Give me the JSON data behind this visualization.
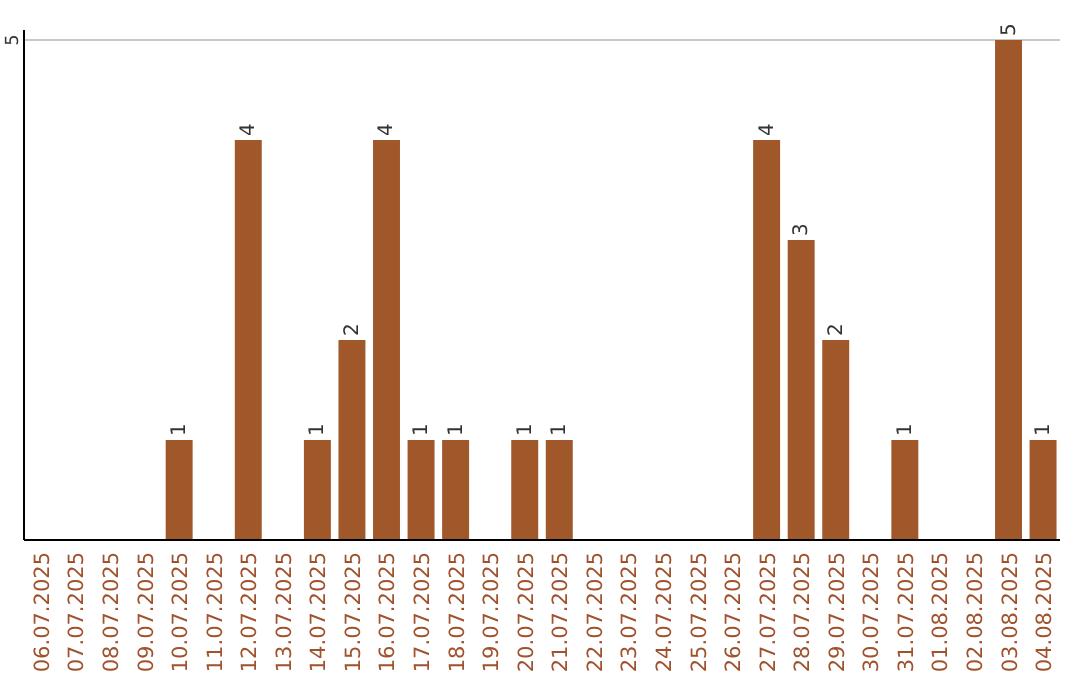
{
  "chart_data": {
    "type": "bar",
    "categories": [
      "06.07.2025",
      "07.07.2025",
      "08.07.2025",
      "09.07.2025",
      "10.07.2025",
      "11.07.2025",
      "12.07.2025",
      "13.07.2025",
      "14.07.2025",
      "15.07.2025",
      "16.07.2025",
      "17.07.2025",
      "18.07.2025",
      "19.07.2025",
      "20.07.2025",
      "21.07.2025",
      "22.07.2025",
      "23.07.2025",
      "24.07.2025",
      "25.07.2025",
      "26.07.2025",
      "27.07.2025",
      "28.07.2025",
      "29.07.2025",
      "30.07.2025",
      "31.07.2025",
      "01.08.2025",
      "02.08.2025",
      "03.08.2025",
      "04.08.2025"
    ],
    "values": [
      0,
      0,
      0,
      0,
      1,
      0,
      4,
      0,
      1,
      2,
      4,
      1,
      1,
      0,
      1,
      1,
      0,
      0,
      0,
      0,
      0,
      4,
      3,
      2,
      0,
      1,
      0,
      0,
      5,
      1
    ],
    "value_labels": [
      null,
      null,
      null,
      null,
      "1",
      null,
      "4",
      null,
      "1",
      "2",
      "4",
      "1",
      "1",
      null,
      "1",
      "1",
      null,
      null,
      null,
      null,
      null,
      "4",
      "3",
      "2",
      null,
      "1",
      null,
      null,
      "5",
      "1"
    ],
    "color": "#a0582a",
    "ylim": [
      0,
      5.1
    ],
    "yticks": [
      {
        "value": 0,
        "label": null
      },
      5
    ],
    "grid": "y"
  }
}
